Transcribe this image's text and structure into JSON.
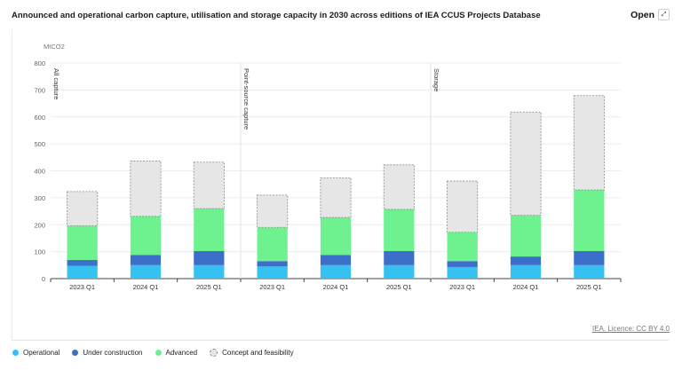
{
  "header": {
    "title": "Announced and operational carbon capture, utilisation and storage capacity in 2030 across editions of IEA CCUS Projects Database",
    "open_label": "Open",
    "expand_icon": "expand-icon"
  },
  "footer": {
    "licence": "IEA. Licence: CC BY 4.0"
  },
  "colors": {
    "Operational": "#35c2f2",
    "Under construction": "#3c6fc9",
    "Advanced": "#6ef28f",
    "Concept and feasibility": "#e6e6e6"
  },
  "chart_data": {
    "type": "bar",
    "stacked": true,
    "title": "Announced and operational carbon capture, utilisation and storage capacity in 2030 across editions of IEA CCUS Projects Database",
    "ylabel": "MtCO2",
    "ylim": [
      0,
      800
    ],
    "yticks": [
      0,
      100,
      200,
      300,
      400,
      500,
      600,
      700,
      800
    ],
    "grid": true,
    "legend_position": "bottom-left",
    "groups": [
      "All capture",
      "Point-source capture",
      "Storage"
    ],
    "categories": [
      "2023 Q1",
      "2024 Q1",
      "2025 Q1",
      "2023 Q1",
      "2024 Q1",
      "2025 Q1",
      "2023 Q1",
      "2024 Q1",
      "2025 Q1"
    ],
    "series": [
      {
        "name": "Operational",
        "values": [
          47,
          50,
          50,
          45,
          50,
          50,
          43,
          50,
          50
        ]
      },
      {
        "name": "Under construction",
        "values": [
          22,
          38,
          52,
          20,
          38,
          52,
          22,
          32,
          52
        ]
      },
      {
        "name": "Advanced",
        "values": [
          127,
          143,
          158,
          125,
          139,
          155,
          107,
          153,
          227
        ]
      },
      {
        "name": "Concept and feasibility",
        "values": [
          127,
          205,
          172,
          120,
          147,
          165,
          190,
          383,
          350
        ]
      }
    ]
  }
}
